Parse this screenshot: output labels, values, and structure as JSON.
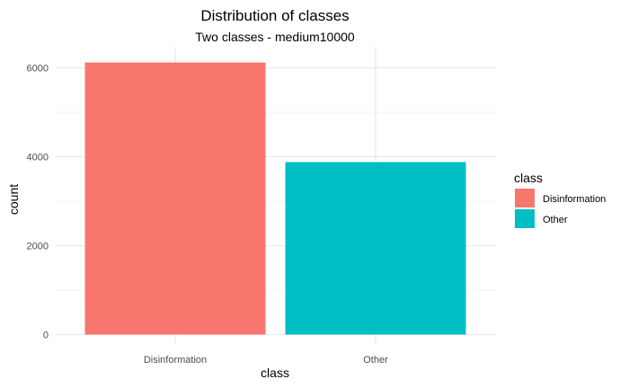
{
  "chart_data": {
    "type": "bar",
    "title": "Distribution of classes",
    "subtitle": "Two classes - medium10000",
    "xlabel": "class",
    "ylabel": "count",
    "categories": [
      "Disinformation",
      "Other"
    ],
    "values": [
      6120,
      3880
    ],
    "colors": [
      "#F8766D",
      "#00BFC4"
    ],
    "ylim": [
      0,
      6000
    ],
    "y_ticks": [
      0,
      2000,
      4000,
      6000
    ],
    "grid": true,
    "legend": {
      "title": "class",
      "placement": "right",
      "items": [
        {
          "label": "Disinformation",
          "color": "#F8766D"
        },
        {
          "label": "Other",
          "color": "#00BFC4"
        }
      ]
    }
  }
}
